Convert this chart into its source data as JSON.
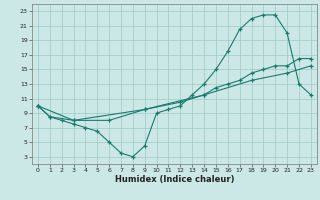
{
  "xlabel": "Humidex (Indice chaleur)",
  "bg_color": "#cce8e6",
  "grid_color": "#a0c8c4",
  "line_color": "#1a7a6e",
  "xlim": [
    -0.5,
    23.5
  ],
  "ylim": [
    2,
    24
  ],
  "xticks": [
    0,
    1,
    2,
    3,
    4,
    5,
    6,
    7,
    8,
    9,
    10,
    11,
    12,
    13,
    14,
    15,
    16,
    17,
    18,
    19,
    20,
    21,
    22,
    23
  ],
  "yticks": [
    3,
    5,
    7,
    9,
    11,
    13,
    15,
    17,
    19,
    21,
    23
  ],
  "line1_x": [
    0,
    1,
    2,
    3,
    4,
    5,
    6,
    7,
    8,
    9,
    10,
    11,
    12,
    13,
    14,
    15,
    16,
    17,
    18,
    19,
    20,
    21,
    22,
    23
  ],
  "line1_y": [
    10,
    8.5,
    8,
    7.5,
    7,
    6.5,
    5,
    3.5,
    3,
    4.5,
    9,
    9.5,
    10,
    11.5,
    13,
    15,
    17.5,
    20.5,
    22,
    22.5,
    22.5,
    20,
    13,
    11.5
  ],
  "line2_x": [
    0,
    3,
    9,
    14,
    18,
    21,
    23
  ],
  "line2_y": [
    10,
    8,
    9.5,
    11.5,
    13.5,
    14.5,
    15.5
  ],
  "line3_x": [
    0,
    1,
    3,
    6,
    9,
    12,
    14,
    15,
    16,
    17,
    18,
    19,
    20,
    21,
    22,
    23
  ],
  "line3_y": [
    10,
    8.5,
    8,
    8,
    9.5,
    10.5,
    11.5,
    12.5,
    13,
    13.5,
    14.5,
    15,
    15.5,
    15.5,
    16.5,
    16.5
  ]
}
